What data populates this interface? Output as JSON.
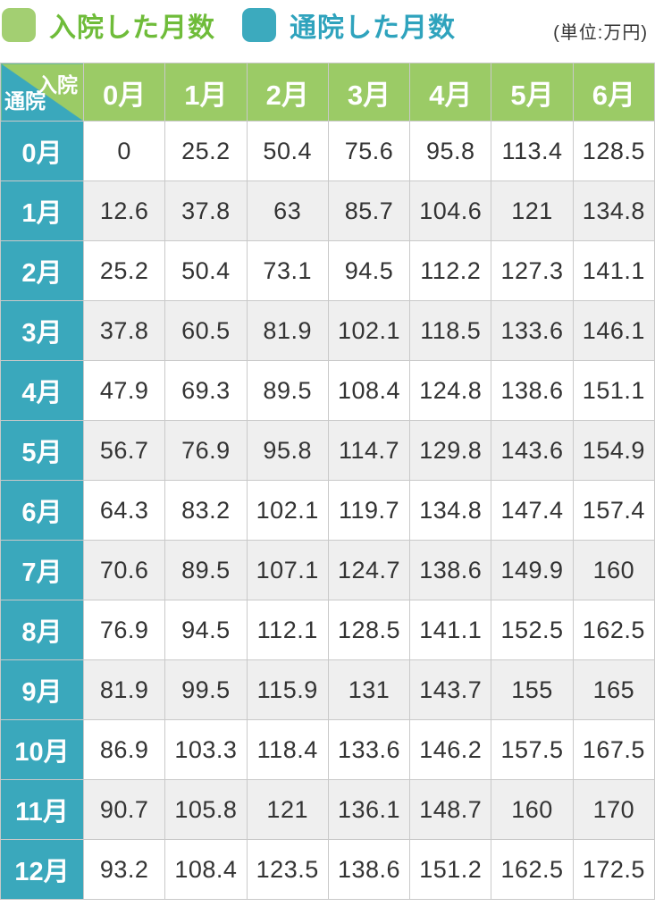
{
  "unit_note": "(単位:万円)",
  "legend": {
    "items": [
      {
        "label": "入院した月数",
        "swatch_color": "#a3cf72",
        "text_color": "#6fbc3a"
      },
      {
        "label": "通院した月数",
        "swatch_color": "#3caabe",
        "text_color": "#2fa3bd"
      }
    ]
  },
  "colors": {
    "header_green": "#9bcb66",
    "row_teal": "#3aa8bc",
    "alt_row": "#efefef",
    "border": "#c9c9c9",
    "value_text": "#333333"
  },
  "chart_data": {
    "type": "table",
    "title": "",
    "unit": "(単位:万円)",
    "columns_axis_label": "入院",
    "rows_axis_label": "通院",
    "columns": [
      "0月",
      "1月",
      "2月",
      "3月",
      "4月",
      "5月",
      "6月"
    ],
    "rows": [
      "0月",
      "1月",
      "2月",
      "3月",
      "4月",
      "5月",
      "6月",
      "7月",
      "8月",
      "9月",
      "10月",
      "11月",
      "12月"
    ],
    "values": [
      [
        0,
        25.2,
        50.4,
        75.6,
        95.8,
        113.4,
        128.5
      ],
      [
        12.6,
        37.8,
        63,
        85.7,
        104.6,
        121,
        134.8
      ],
      [
        25.2,
        50.4,
        73.1,
        94.5,
        112.2,
        127.3,
        141.1
      ],
      [
        37.8,
        60.5,
        81.9,
        102.1,
        118.5,
        133.6,
        146.1
      ],
      [
        47.9,
        69.3,
        89.5,
        108.4,
        124.8,
        138.6,
        151.1
      ],
      [
        56.7,
        76.9,
        95.8,
        114.7,
        129.8,
        143.6,
        154.9
      ],
      [
        64.3,
        83.2,
        102.1,
        119.7,
        134.8,
        147.4,
        157.4
      ],
      [
        70.6,
        89.5,
        107.1,
        124.7,
        138.6,
        149.9,
        160
      ],
      [
        76.9,
        94.5,
        112.1,
        128.5,
        141.1,
        152.5,
        162.5
      ],
      [
        81.9,
        99.5,
        115.9,
        131,
        143.7,
        155,
        165
      ],
      [
        86.9,
        103.3,
        118.4,
        133.6,
        146.2,
        157.5,
        167.5
      ],
      [
        90.7,
        105.8,
        121,
        136.1,
        148.7,
        160,
        170
      ],
      [
        93.2,
        108.4,
        123.5,
        138.6,
        151.2,
        162.5,
        172.5
      ]
    ]
  }
}
